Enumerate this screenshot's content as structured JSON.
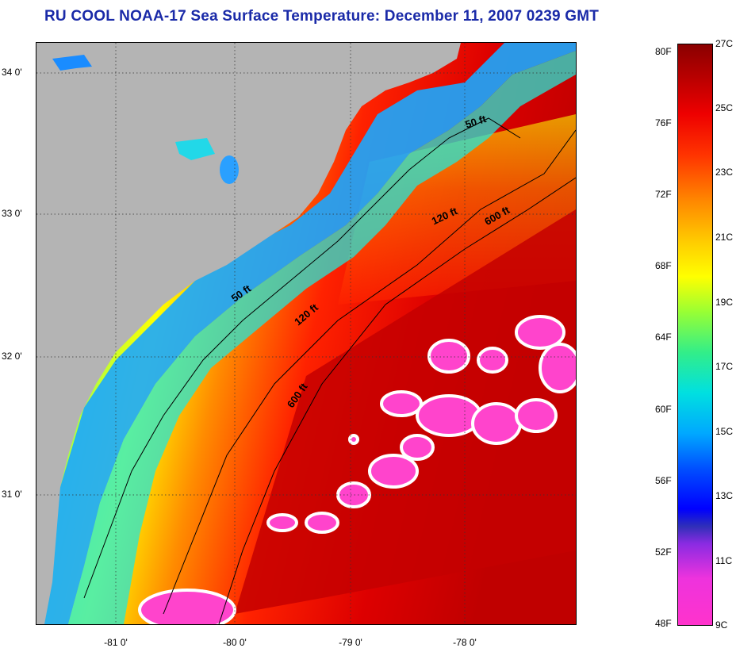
{
  "title": "RU COOL  NOAA-17  Sea Surface Temperature:  December 11, 2007 0239 GMT",
  "latitude_labels": [
    "34 0'",
    "33 0'",
    "32 0'",
    "31 0'"
  ],
  "longitude_labels": [
    "-81 0'",
    "-80 0'",
    "-79 0'",
    "-78 0'"
  ],
  "contour_labels": [
    "50 ft",
    "120 ft",
    "600 ft",
    "50 ft",
    "120 ft",
    "600 ft"
  ],
  "colorbar": {
    "fahrenheit_labels": [
      "80F",
      "76F",
      "72F",
      "68F",
      "64F",
      "60F",
      "56F",
      "52F",
      "48F"
    ],
    "celsius_labels": [
      "27C",
      "25C",
      "23C",
      "21C",
      "19C",
      "17C",
      "15C",
      "13C",
      "11C",
      "9C"
    ]
  },
  "colors": {
    "title": "#1a2aa8",
    "land": "#b4b4b4",
    "cloud_mask": "#ff44cc"
  }
}
